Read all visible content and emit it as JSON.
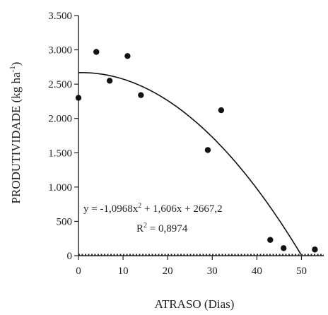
{
  "chart_data": {
    "type": "scatter",
    "xlabel": "ATRASO (Dias)",
    "ylabel_main": "PRODUTIVIDADE (kg ha",
    "ylabel_sup": "-1",
    "ylabel_close": ")",
    "xlim": [
      0,
      55
    ],
    "ylim": [
      0,
      3500
    ],
    "xticks": [
      0,
      10,
      20,
      30,
      40,
      50
    ],
    "xtick_labels": [
      "0",
      "10",
      "20",
      "30",
      "40",
      "50"
    ],
    "yticks": [
      0,
      500,
      1000,
      1500,
      2000,
      2500,
      3000,
      3500
    ],
    "ytick_labels": [
      "0",
      "500",
      "1.000",
      "1.500",
      "2.000",
      "2.500",
      "3.000",
      "3.500"
    ],
    "grid": false,
    "points": [
      {
        "x": 0,
        "y": 2300
      },
      {
        "x": 4,
        "y": 2970
      },
      {
        "x": 7,
        "y": 2550
      },
      {
        "x": 11,
        "y": 2910
      },
      {
        "x": 14,
        "y": 2340
      },
      {
        "x": 29,
        "y": 1540
      },
      {
        "x": 32,
        "y": 2120
      },
      {
        "x": 43,
        "y": 230
      },
      {
        "x": 46,
        "y": 110
      },
      {
        "x": 53,
        "y": 90
      }
    ],
    "fit": {
      "a": -1.0968,
      "b": 1.606,
      "c": 2667.2,
      "x_start": 0,
      "x_end": 49.9
    },
    "equation": {
      "part1": "y = -1,0968x",
      "sup": "2",
      "part2": " + 1,606x + 2667,2"
    },
    "r2": {
      "label": "R",
      "sup": "2",
      "value": " = 0,8974"
    }
  }
}
